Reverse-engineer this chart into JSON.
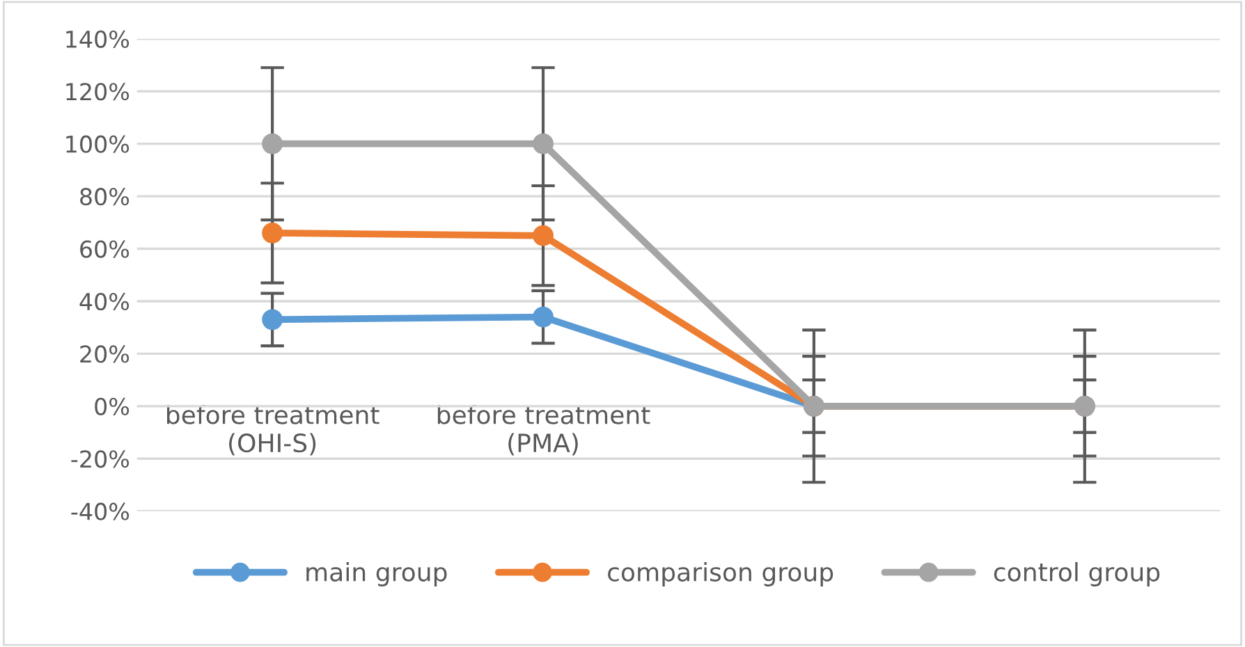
{
  "chart_data": {
    "type": "line",
    "categories": [
      "before treatment\n(OHI-S)",
      "before treatment\n(PMA)",
      null,
      null
    ],
    "series": [
      {
        "name": "main group",
        "color": "#5b9bd5",
        "values": [
          33,
          34,
          0,
          0
        ],
        "errors": [
          10,
          10,
          10,
          10
        ]
      },
      {
        "name": "comparison group",
        "color": "#ed7d31",
        "values": [
          66,
          65,
          0,
          0
        ],
        "errors": [
          19,
          19,
          19,
          19
        ]
      },
      {
        "name": "control group",
        "color": "#a5a5a5",
        "values": [
          100,
          100,
          0,
          0
        ],
        "errors": [
          29,
          29,
          29,
          29
        ]
      }
    ],
    "ylim": [
      -40,
      140
    ],
    "yticks": [
      {
        "value": -40,
        "label": "-40%"
      },
      {
        "value": -20,
        "label": "-20%"
      },
      {
        "value": 0,
        "label": "0%"
      },
      {
        "value": 20,
        "label": "20%"
      },
      {
        "value": 40,
        "label": "40%"
      },
      {
        "value": 60,
        "label": "60%"
      },
      {
        "value": 80,
        "label": "80%"
      },
      {
        "value": 100,
        "label": "100%"
      },
      {
        "value": 120,
        "label": "120%"
      },
      {
        "value": 140,
        "label": "140%"
      }
    ],
    "grid": "y",
    "legend": "bottom",
    "marker": "circle",
    "line_style": "solid"
  }
}
